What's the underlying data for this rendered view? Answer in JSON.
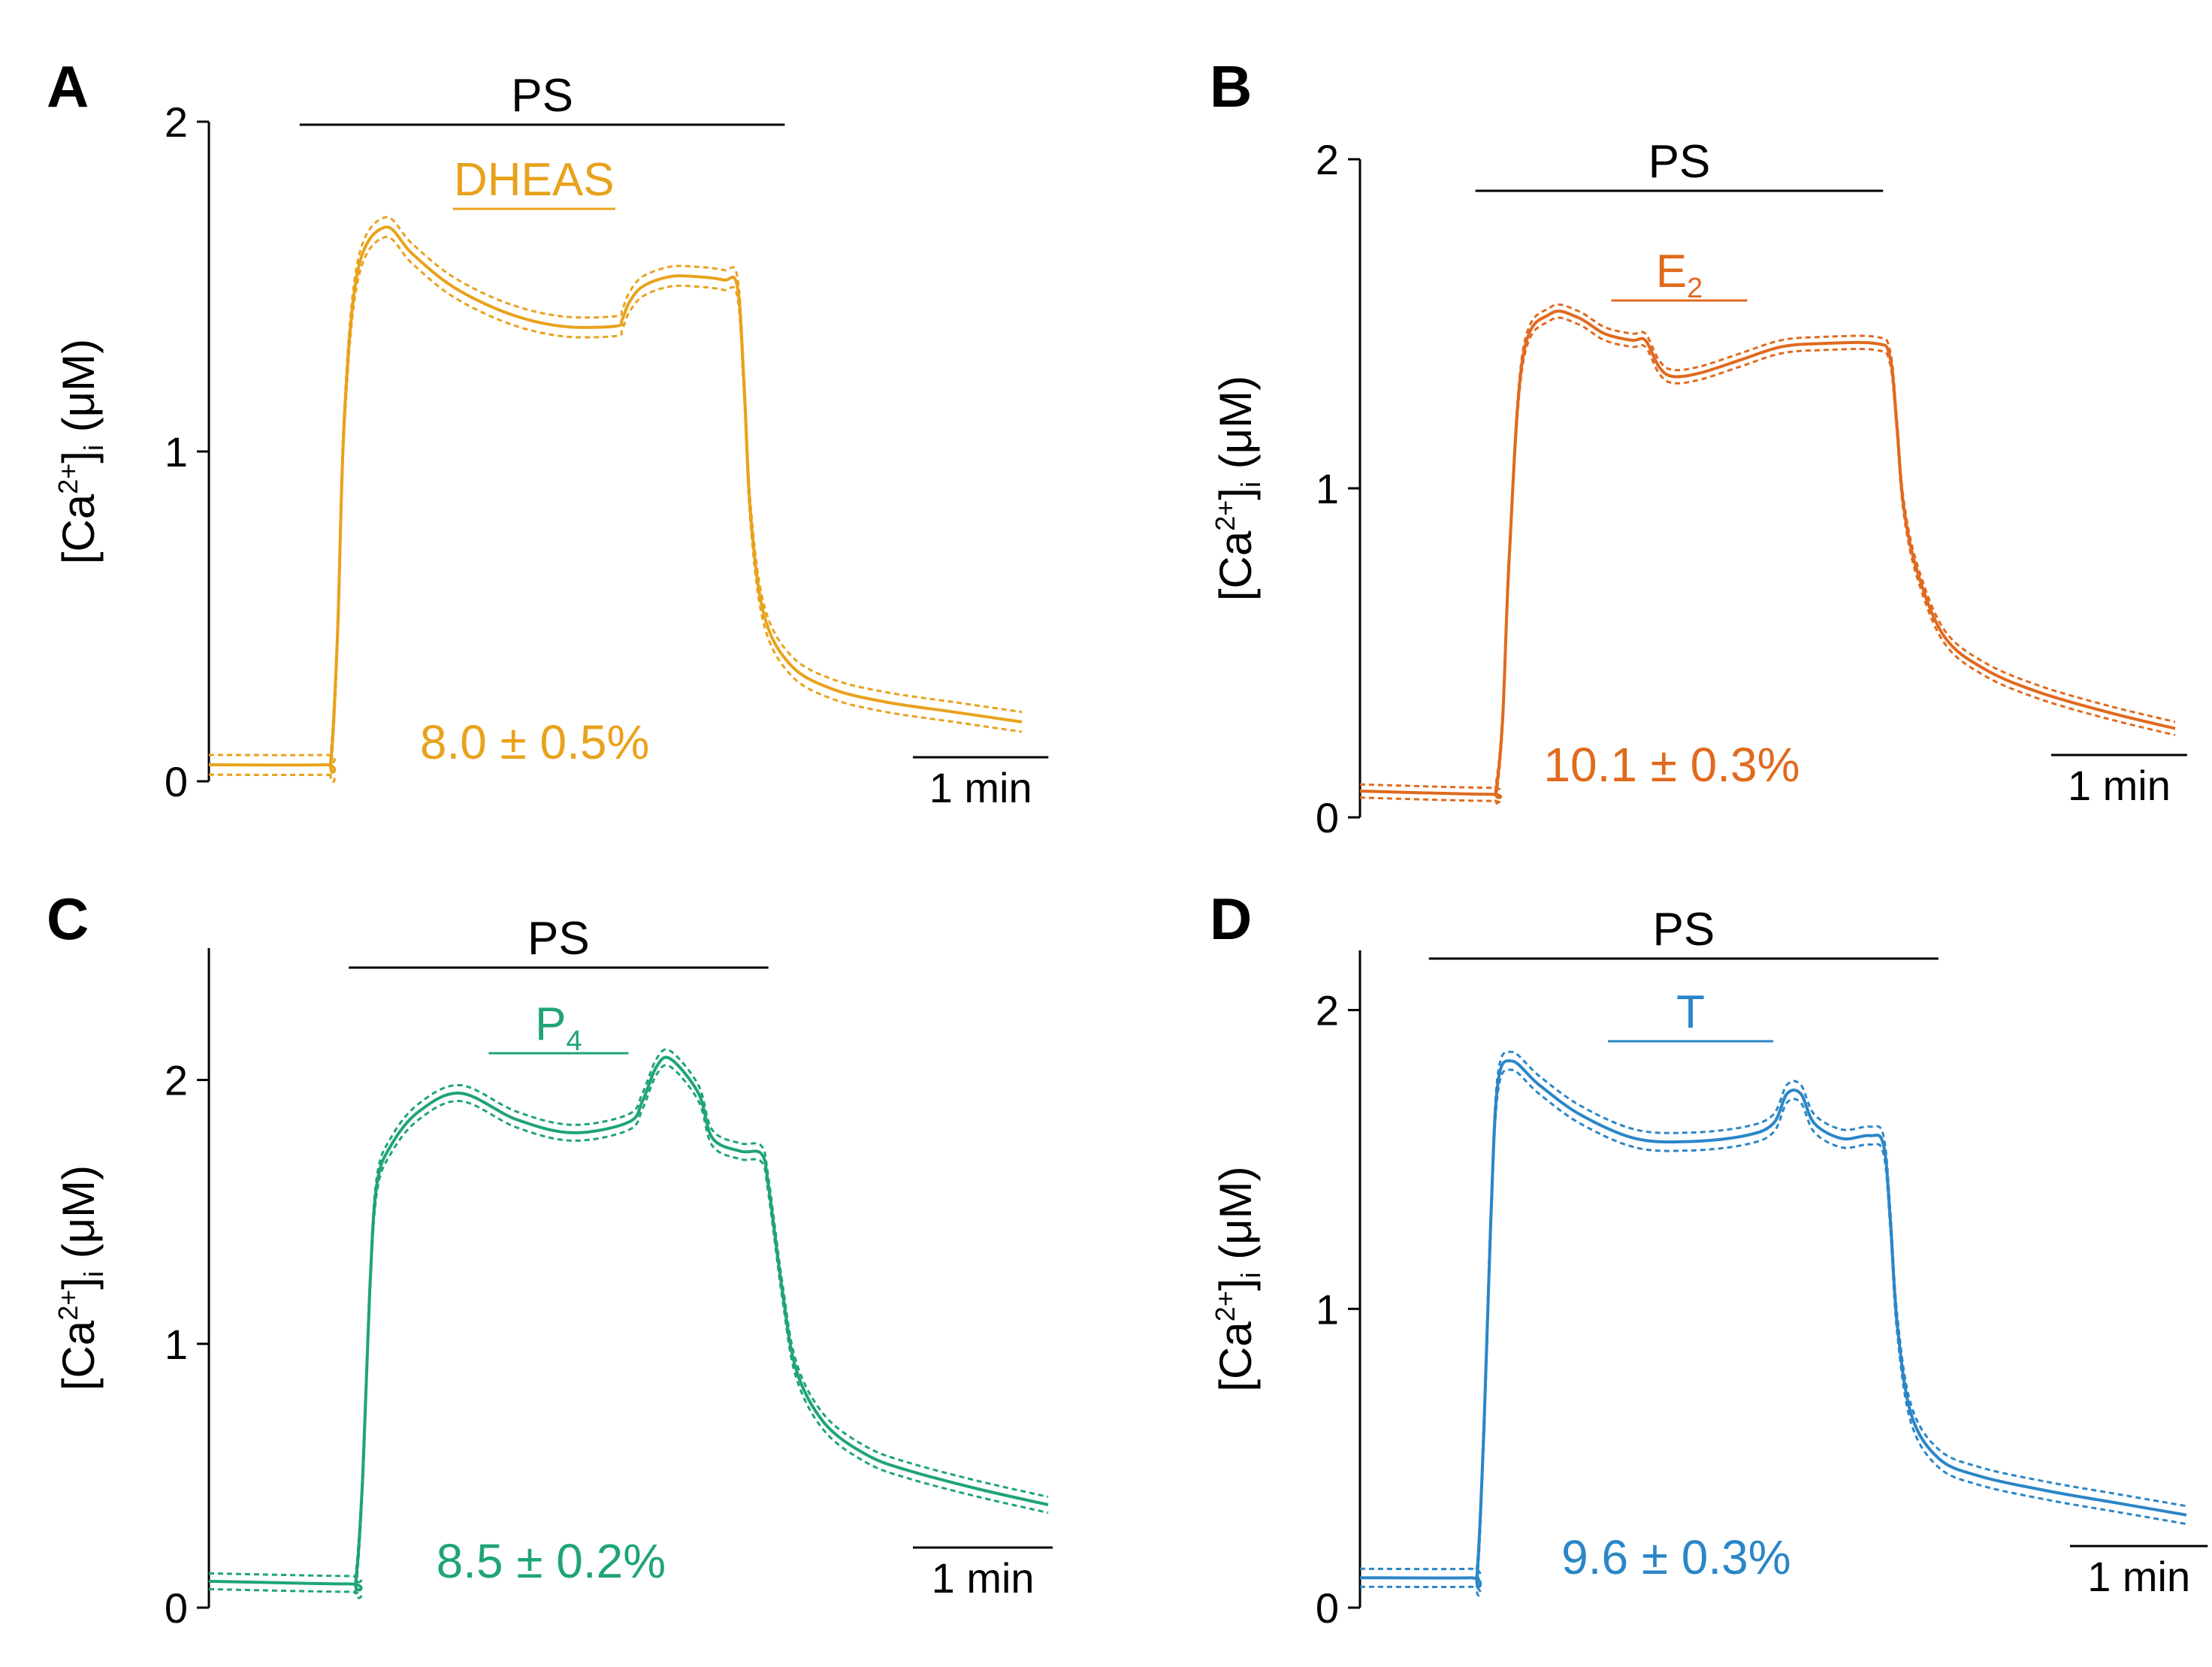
{
  "chart_data": [
    {
      "type": "line",
      "panel": "A",
      "color": "#E8A21C",
      "ylabel": "[Ca2+]i (μM)",
      "ylim": [
        0,
        2
      ],
      "yticks": [
        0,
        1,
        2
      ],
      "ytick_labels": [
        "0",
        "1",
        "2"
      ],
      "bar_outer": {
        "label": "PS",
        "start": 0.67,
        "end": 4.25
      },
      "bar_inner": {
        "label": "DHEAS",
        "start": 1.8,
        "end": 3.0
      },
      "annotation": "8.0 ± 0.5%",
      "scale_bar": {
        "label": "1 min",
        "length": 1.0
      },
      "x_range": [
        0,
        6
      ],
      "series": {
        "x": [
          0,
          0.85,
          0.9,
          0.95,
          1.0,
          1.1,
          1.3,
          1.5,
          1.8,
          2.2,
          2.6,
          3.0,
          3.05,
          3.1,
          3.2,
          3.4,
          3.6,
          3.8,
          3.9,
          3.95,
          4.0,
          4.1,
          4.3,
          4.6,
          5.0,
          5.5,
          6.0
        ],
        "mean": [
          0.05,
          0.05,
          0.06,
          0.45,
          1.1,
          1.55,
          1.68,
          1.6,
          1.5,
          1.42,
          1.38,
          1.38,
          1.4,
          1.45,
          1.5,
          1.53,
          1.53,
          1.52,
          1.5,
          1.2,
          0.8,
          0.5,
          0.35,
          0.28,
          0.24,
          0.21,
          0.18
        ],
        "sem": 0.03
      }
    },
    {
      "type": "line",
      "panel": "B",
      "color": "#E06A1E",
      "ylabel": "[Ca2+]i (μM)",
      "ylim": [
        0,
        2
      ],
      "yticks": [
        0,
        1,
        2
      ],
      "ytick_labels": [
        "0",
        "1",
        "2"
      ],
      "bar_outer": {
        "label": "PS",
        "start": 0.85,
        "end": 3.85
      },
      "bar_inner": {
        "label": "E",
        "sub": "2",
        "start": 1.85,
        "end": 2.85
      },
      "annotation": "10.1 ± 0.3%",
      "scale_bar": {
        "label": "1 min",
        "length": 1.0
      },
      "x_range": [
        0,
        6
      ],
      "series": {
        "x": [
          0,
          0.95,
          1.0,
          1.05,
          1.1,
          1.2,
          1.4,
          1.6,
          1.8,
          2.0,
          2.1,
          2.2,
          2.3,
          2.5,
          2.8,
          3.1,
          3.4,
          3.8,
          3.9,
          3.95,
          4.0,
          4.1,
          4.3,
          4.6,
          5.0,
          5.5,
          6.0
        ],
        "mean": [
          0.08,
          0.07,
          0.08,
          0.3,
          0.8,
          1.4,
          1.53,
          1.52,
          1.47,
          1.45,
          1.45,
          1.37,
          1.34,
          1.35,
          1.39,
          1.43,
          1.44,
          1.44,
          1.4,
          1.2,
          0.95,
          0.75,
          0.55,
          0.45,
          0.38,
          0.32,
          0.27
        ],
        "sem": 0.02
      }
    },
    {
      "type": "line",
      "panel": "C",
      "color": "#1FA37A",
      "ylabel": "[Ca2+]i (μM)",
      "ylim": [
        0,
        2.5
      ],
      "yticks": [
        0,
        1,
        2
      ],
      "ytick_labels": [
        "0",
        "1",
        "2"
      ],
      "bar_outer": {
        "label": "PS",
        "start": 1.0,
        "end": 4.0
      },
      "bar_inner": {
        "label": "P",
        "sub": "4",
        "start": 2.0,
        "end": 3.0
      },
      "annotation": "8.5 ± 0.2%",
      "scale_bar": {
        "label": "1 min",
        "length": 1.0
      },
      "x_range": [
        0,
        6
      ],
      "series": {
        "x": [
          0,
          1.0,
          1.05,
          1.1,
          1.15,
          1.2,
          1.3,
          1.5,
          1.8,
          2.2,
          2.6,
          3.0,
          3.1,
          3.2,
          3.3,
          3.5,
          3.6,
          3.8,
          3.95,
          4.0,
          4.1,
          4.2,
          4.4,
          4.7,
          5.0,
          5.5,
          6.0
        ],
        "mean": [
          0.1,
          0.09,
          0.1,
          0.5,
          1.2,
          1.6,
          1.75,
          1.88,
          1.95,
          1.85,
          1.8,
          1.84,
          1.92,
          2.05,
          2.08,
          1.95,
          1.78,
          1.73,
          1.72,
          1.6,
          1.2,
          0.9,
          0.7,
          0.58,
          0.52,
          0.45,
          0.39
        ],
        "sem": 0.03
      }
    },
    {
      "type": "line",
      "panel": "D",
      "color": "#2A86C7",
      "ylabel": "[Ca2+]i (μM)",
      "ylim": [
        0,
        2.2
      ],
      "yticks": [
        0,
        1,
        2
      ],
      "ytick_labels": [
        "0",
        "1",
        "2"
      ],
      "bar_outer": {
        "label": "PS",
        "start": 0.5,
        "end": 4.2
      },
      "bar_inner": {
        "label": "T",
        "start": 1.8,
        "end": 3.0
      },
      "annotation": "9.6 ± 0.3%",
      "scale_bar": {
        "label": "1 min",
        "length": 1.0
      },
      "x_range": [
        0,
        6
      ],
      "series": {
        "x": [
          0,
          0.8,
          0.85,
          0.9,
          0.95,
          1.0,
          1.1,
          1.3,
          1.6,
          2.0,
          2.4,
          2.8,
          3.0,
          3.1,
          3.2,
          3.3,
          3.5,
          3.7,
          3.8,
          3.85,
          3.9,
          4.0,
          4.2,
          4.5,
          5.0,
          5.5,
          6.0
        ],
        "mean": [
          0.1,
          0.1,
          0.11,
          0.6,
          1.3,
          1.75,
          1.83,
          1.75,
          1.65,
          1.57,
          1.56,
          1.58,
          1.62,
          1.72,
          1.72,
          1.62,
          1.57,
          1.58,
          1.55,
          1.3,
          0.95,
          0.65,
          0.5,
          0.44,
          0.39,
          0.35,
          0.31
        ],
        "sem": 0.03
      }
    }
  ]
}
